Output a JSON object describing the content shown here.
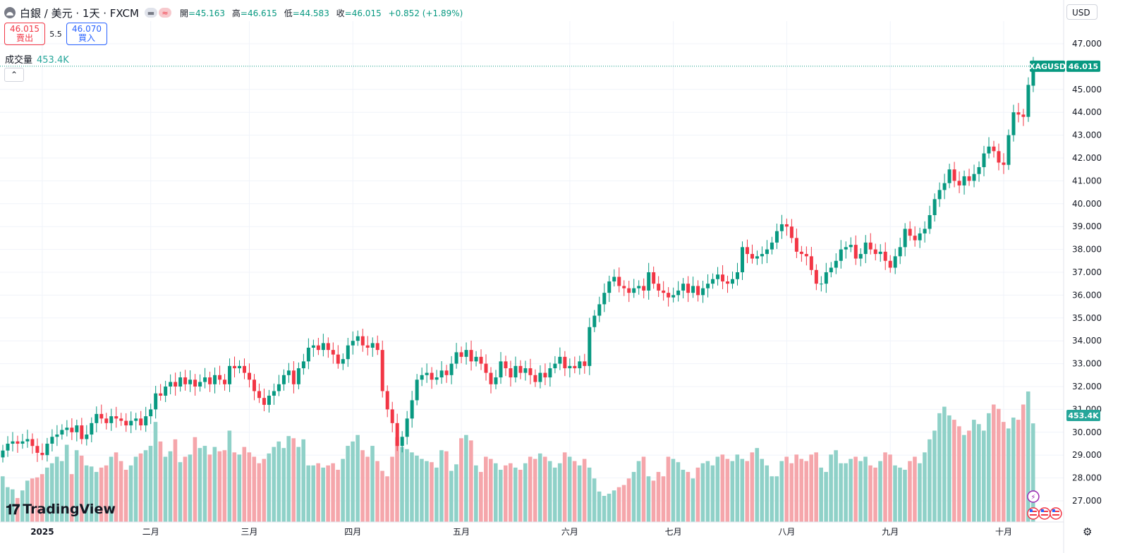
{
  "header": {
    "symbol": "白銀 / 美元 · 1天 · FXCM",
    "pill1": "▬",
    "pill2": "≈",
    "open_label": "開",
    "open": "=45.163",
    "high_label": "高",
    "high": "=46.615",
    "low_label": "低",
    "low": "=44.583",
    "close_label": "收",
    "close": "=46.015",
    "change": "+0.852 (+1.89%)"
  },
  "trade": {
    "sell_price": "46.015",
    "sell_label": "賣出",
    "spread": "5.5",
    "buy_price": "46.070",
    "buy_label": "買入"
  },
  "volume": {
    "label": "成交量",
    "value": "453.4K"
  },
  "collapse_icon": "chevron-up-icon",
  "currency": "USD",
  "brand": "TradingView",
  "settings_icon": "gear-icon",
  "colors": {
    "up": "#089981",
    "down": "#f23645",
    "up_volume": "#8fd1c8",
    "down_volume": "#f5a6ab",
    "grid": "#f0f3fa"
  },
  "chart_data": {
    "type": "candlestick",
    "symbol_tag": "XAGUSD",
    "last_price": "46.015",
    "volume_tag": "453.4K",
    "y_ticks": [
      "47.000",
      "45.000",
      "44.000",
      "43.000",
      "42.000",
      "41.000",
      "40.000",
      "39.000",
      "38.000",
      "37.000",
      "36.000",
      "35.000",
      "34.000",
      "33.000",
      "32.000",
      "31.000",
      "30.000",
      "29.000",
      "28.000",
      "27.000"
    ],
    "ylim": [
      26.1,
      47.3
    ],
    "x_ticks": [
      {
        "label": "2025",
        "index": 8,
        "bold": true
      },
      {
        "label": "二月",
        "index": 30
      },
      {
        "label": "三月",
        "index": 50
      },
      {
        "label": "四月",
        "index": 71
      },
      {
        "label": "五月",
        "index": 93
      },
      {
        "label": "六月",
        "index": 115
      },
      {
        "label": "七月",
        "index": 136
      },
      {
        "label": "八月",
        "index": 159
      },
      {
        "label": "九月",
        "index": 180
      },
      {
        "label": "十月",
        "index": 203
      }
    ],
    "close": [
      29.2,
      29.5,
      29.6,
      29.5,
      29.6,
      29.7,
      29.4,
      29.1,
      29.0,
      29.5,
      29.8,
      29.9,
      30.1,
      30.2,
      30.0,
      30.3,
      29.7,
      29.9,
      30.4,
      30.8,
      30.6,
      30.4,
      30.7,
      30.6,
      30.5,
      30.3,
      30.5,
      30.6,
      30.3,
      30.7,
      31.0,
      31.7,
      31.6,
      32.0,
      32.2,
      32.0,
      32.4,
      32.1,
      32.3,
      32.0,
      32.2,
      32.4,
      32.1,
      32.5,
      32.3,
      32.1,
      32.9,
      32.8,
      32.9,
      32.6,
      32.3,
      31.8,
      31.5,
      31.2,
      31.6,
      31.8,
      32.1,
      32.5,
      32.7,
      32.1,
      32.8,
      33.1,
      33.7,
      33.8,
      33.6,
      33.9,
      33.6,
      33.4,
      33.0,
      33.2,
      33.8,
      34.0,
      34.2,
      33.8,
      33.7,
      33.9,
      33.6,
      31.8,
      31.0,
      30.4,
      29.4,
      29.8,
      30.6,
      31.4,
      32.3,
      32.5,
      32.6,
      32.3,
      32.4,
      32.7,
      32.5,
      33.0,
      33.5,
      33.3,
      33.6,
      33.1,
      33.3,
      33.0,
      32.6,
      32.1,
      32.4,
      33.1,
      32.8,
      32.4,
      32.9,
      32.6,
      32.8,
      32.5,
      32.2,
      32.6,
      32.4,
      32.8,
      33.0,
      33.3,
      32.8,
      32.9,
      32.8,
      33.1,
      32.9,
      34.6,
      35.1,
      35.6,
      36.1,
      36.6,
      36.8,
      36.4,
      36.3,
      36.1,
      36.3,
      36.4,
      36.2,
      37.0,
      36.5,
      36.2,
      36.1,
      35.9,
      36.0,
      36.2,
      36.5,
      36.1,
      36.4,
      36.0,
      36.3,
      36.5,
      36.7,
      36.9,
      36.6,
      36.5,
      36.7,
      37.0,
      38.1,
      37.8,
      37.6,
      37.7,
      37.8,
      38.0,
      38.3,
      38.8,
      39.1,
      39.0,
      38.5,
      37.9,
      37.8,
      37.7,
      37.1,
      36.5,
      36.5,
      37.0,
      37.2,
      37.5,
      38.0,
      38.1,
      38.2,
      37.6,
      37.8,
      38.3,
      38.0,
      37.8,
      37.9,
      37.5,
      37.2,
      37.7,
      38.1,
      38.9,
      38.6,
      38.4,
      38.7,
      38.9,
      39.5,
      40.2,
      40.6,
      40.9,
      41.5,
      41.0,
      40.8,
      41.2,
      41.0,
      41.3,
      41.6,
      42.2,
      42.5,
      42.3,
      41.8,
      41.7,
      43.0,
      44.0,
      43.9,
      43.8,
      45.2,
      46.015
    ],
    "open": [
      28.9,
      29.2,
      29.5,
      29.6,
      29.5,
      29.6,
      29.7,
      29.4,
      29.1,
      29.0,
      29.5,
      29.8,
      29.9,
      30.1,
      30.2,
      30.0,
      30.3,
      29.7,
      29.9,
      30.4,
      30.8,
      30.6,
      30.4,
      30.7,
      30.6,
      30.5,
      30.3,
      30.5,
      30.6,
      30.3,
      30.7,
      31.0,
      31.7,
      31.6,
      32.0,
      32.2,
      32.0,
      32.4,
      32.1,
      32.3,
      32.0,
      32.2,
      32.4,
      32.1,
      32.5,
      32.3,
      32.1,
      32.9,
      32.8,
      32.9,
      32.6,
      32.3,
      31.8,
      31.5,
      31.2,
      31.6,
      31.8,
      32.1,
      32.5,
      32.7,
      32.1,
      32.8,
      33.1,
      33.7,
      33.8,
      33.6,
      33.9,
      33.6,
      33.4,
      33.0,
      33.2,
      33.8,
      34.0,
      34.2,
      33.8,
      33.7,
      33.9,
      33.6,
      31.8,
      31.0,
      30.4,
      29.4,
      29.8,
      30.6,
      31.4,
      32.3,
      32.5,
      32.6,
      32.3,
      32.4,
      32.7,
      32.5,
      33.0,
      33.5,
      33.3,
      33.6,
      33.1,
      33.3,
      33.0,
      32.6,
      32.1,
      32.4,
      33.1,
      32.8,
      32.4,
      32.9,
      32.6,
      32.8,
      32.5,
      32.2,
      32.6,
      32.4,
      32.8,
      33.0,
      33.3,
      32.8,
      32.9,
      32.8,
      33.1,
      32.9,
      34.6,
      35.1,
      35.6,
      36.1,
      36.6,
      36.8,
      36.4,
      36.3,
      36.1,
      36.3,
      36.4,
      36.2,
      37.0,
      36.5,
      36.2,
      36.1,
      35.9,
      36.0,
      36.2,
      36.5,
      36.1,
      36.4,
      36.0,
      36.3,
      36.5,
      36.7,
      36.9,
      36.6,
      36.5,
      36.7,
      37.0,
      38.1,
      37.8,
      37.6,
      37.7,
      37.8,
      38.0,
      38.3,
      38.8,
      39.1,
      39.0,
      38.5,
      37.9,
      37.8,
      37.7,
      37.1,
      36.5,
      36.5,
      37.0,
      37.2,
      37.5,
      38.0,
      38.1,
      38.2,
      37.6,
      37.8,
      38.3,
      38.0,
      37.8,
      37.9,
      37.5,
      37.2,
      37.7,
      38.1,
      38.9,
      38.6,
      38.4,
      38.7,
      38.9,
      39.5,
      40.2,
      40.6,
      40.9,
      41.5,
      41.0,
      40.8,
      41.2,
      41.0,
      41.3,
      41.6,
      42.2,
      42.5,
      42.3,
      41.8,
      41.7,
      43.0,
      44.0,
      43.9,
      43.8,
      45.163
    ],
    "volume_k": [
      210,
      160,
      150,
      110,
      145,
      190,
      200,
      205,
      220,
      250,
      270,
      300,
      280,
      355,
      220,
      330,
      305,
      260,
      255,
      230,
      250,
      260,
      300,
      320,
      280,
      240,
      260,
      300,
      315,
      330,
      350,
      460,
      370,
      300,
      325,
      380,
      275,
      300,
      310,
      390,
      340,
      350,
      310,
      345,
      325,
      330,
      420,
      320,
      310,
      345,
      320,
      300,
      270,
      290,
      315,
      345,
      370,
      340,
      395,
      385,
      345,
      380,
      260,
      260,
      270,
      250,
      260,
      270,
      240,
      290,
      350,
      370,
      400,
      330,
      300,
      350,
      280,
      235,
      210,
      300,
      390,
      345,
      335,
      320,
      305,
      290,
      280,
      275,
      250,
      330,
      325,
      235,
      265,
      385,
      400,
      375,
      260,
      230,
      300,
      290,
      270,
      240,
      260,
      270,
      250,
      240,
      270,
      300,
      290,
      315,
      300,
      280,
      250,
      270,
      320,
      300,
      280,
      260,
      290,
      250,
      200,
      140,
      120,
      130,
      145,
      160,
      170,
      200,
      230,
      280,
      300,
      210,
      190,
      230,
      210,
      300,
      290,
      275,
      240,
      230,
      200,
      250,
      270,
      280,
      260,
      300,
      310,
      290,
      280,
      310,
      290,
      280,
      320,
      340,
      290,
      260,
      210,
      210,
      280,
      300,
      270,
      310,
      290,
      280,
      310,
      320,
      250,
      230,
      310,
      330,
      270,
      270,
      290,
      300,
      280,
      300,
      260,
      250,
      280,
      320,
      310,
      260,
      250,
      240,
      280,
      300,
      270,
      320,
      380,
      420,
      500,
      530,
      490,
      470,
      440,
      400,
      420,
      470,
      450,
      420,
      500,
      540,
      520,
      460,
      430,
      480,
      470,
      540,
      600,
      453.4
    ],
    "events": [
      "lightning-icon",
      "us-flag-icon",
      "us-flag-icon",
      "us-flag-icon"
    ]
  }
}
